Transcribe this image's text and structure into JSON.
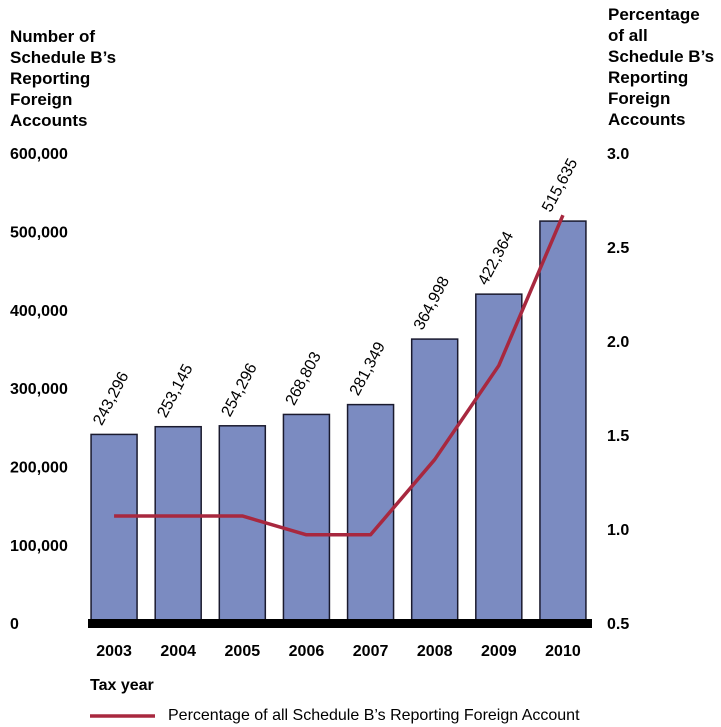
{
  "chart_data": {
    "type": "bar",
    "y_label": "Number of Schedule B’s Reporting Foreign Accounts",
    "y2_label": "Percentage of all Schedule B’s Reporting Foreign Accounts",
    "x_label": "Tax year",
    "categories": [
      "2003",
      "2004",
      "2005",
      "2006",
      "2007",
      "2008",
      "2009",
      "2010"
    ],
    "series": [
      {
        "type": "bar",
        "color": "#7b8bc1",
        "values": [
          243296,
          253145,
          254296,
          268803,
          281349,
          364998,
          422364,
          515635
        ],
        "value_labels": [
          "243,296",
          "253,145",
          "254,296",
          "268,803",
          "281,349",
          "364,998",
          "422,364",
          "515,635"
        ]
      },
      {
        "type": "line",
        "axis": "y2",
        "name": "Percentage of all Schedule B’s Reporting Foreign Account",
        "color": "#a8283f",
        "values": [
          1.08,
          1.08,
          1.08,
          0.98,
          0.98,
          1.38,
          1.88,
          2.68
        ]
      }
    ],
    "ylim": [
      0,
      600000
    ],
    "yticks": [
      0,
      {
        "value": 100000,
        "label": "100,000"
      },
      {
        "value": 200000,
        "label": "200,000"
      },
      {
        "value": 300000,
        "label": "300,000"
      },
      {
        "value": 400000,
        "label": "400,000"
      },
      {
        "value": 500000,
        "label": "500,000"
      },
      {
        "value": 600000,
        "label": "600,000"
      }
    ],
    "y2lim": [
      0.5,
      3.0
    ],
    "y2ticks": [
      0.5,
      {
        "value": 1.0,
        "label": "1.0"
      },
      1.5,
      {
        "value": 2.0,
        "label": "2.0"
      },
      2.5,
      {
        "value": 3.0,
        "label": "3.0"
      }
    ],
    "legend": "bottom"
  }
}
